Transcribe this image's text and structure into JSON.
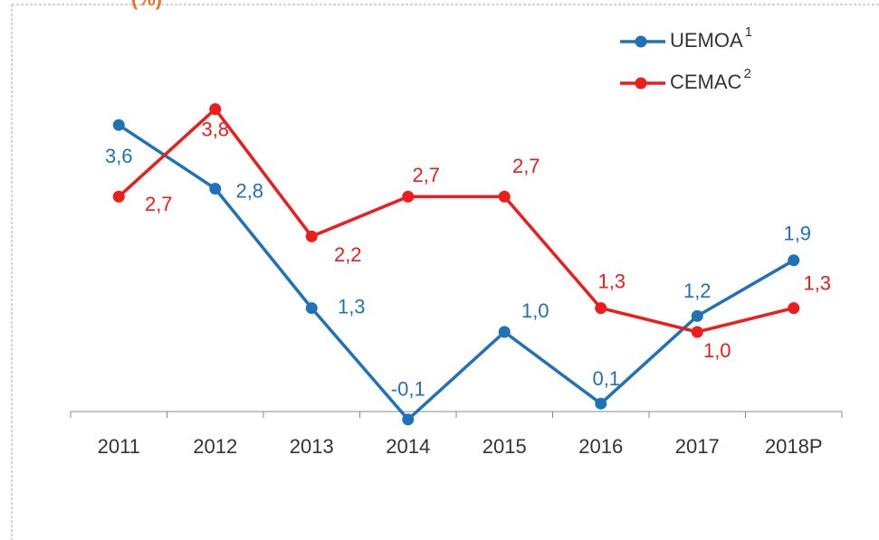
{
  "chart_data": {
    "type": "line",
    "title": "(%)",
    "categories": [
      "2011",
      "2012",
      "2013",
      "2014",
      "2015",
      "2016",
      "2017",
      "2018P"
    ],
    "series": [
      {
        "name": "UEMOA",
        "name_superscript": "1",
        "color": "#1f72b8",
        "values": [
          3.6,
          2.8,
          1.3,
          -0.1,
          1.0,
          0.1,
          1.2,
          1.9
        ],
        "value_labels": [
          "3,6",
          "2,8",
          "1,3",
          "-0,1",
          "1,0",
          "0,1",
          "1,2",
          "1,9"
        ]
      },
      {
        "name": "CEMAC",
        "name_superscript": "2",
        "color": "#ee1c1c",
        "values": [
          2.7,
          3.8,
          2.2,
          2.7,
          2.7,
          1.3,
          1.0,
          1.3
        ],
        "value_labels": [
          "2,7",
          "3,8",
          "2,2",
          "2,7",
          "2,7",
          "1,3",
          "1,0",
          "1,3"
        ]
      }
    ],
    "ylim": [
      -0.5,
      4.5
    ],
    "legend": "top-right"
  }
}
